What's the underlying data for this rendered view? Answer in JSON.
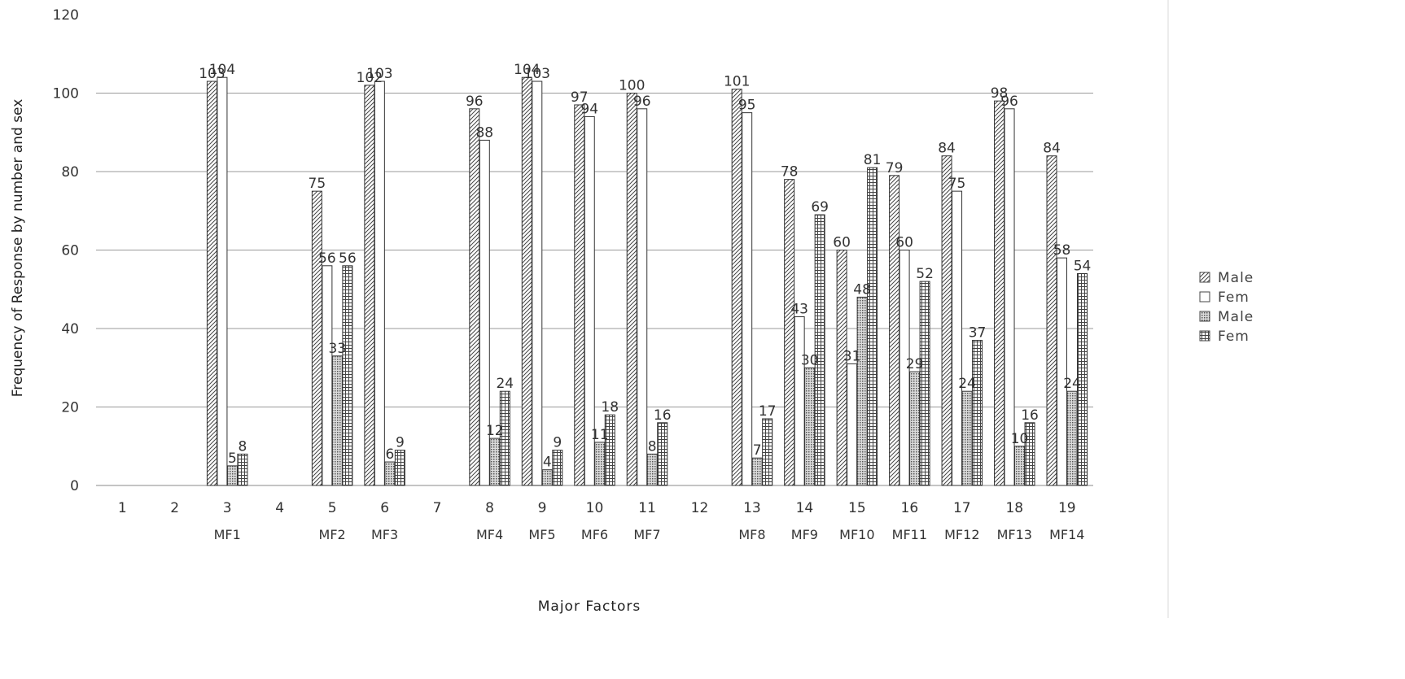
{
  "chart_data": {
    "type": "bar",
    "xlabel": "Major Factors",
    "ylabel": "Frequency of Response by number and sex",
    "ylim": [
      0,
      120
    ],
    "yticks": [
      0,
      20,
      40,
      60,
      80,
      100,
      120
    ],
    "grid": true,
    "legend_position": "right",
    "categories": [
      "1",
      "2",
      "3",
      "4",
      "5",
      "6",
      "7",
      "8",
      "9",
      "10",
      "11",
      "12",
      "13",
      "14",
      "15",
      "16",
      "17",
      "18",
      "19"
    ],
    "category_sublabels": [
      "",
      "",
      "MF1",
      "",
      "MF2",
      "MF3",
      "",
      "MF4",
      "MF5",
      "MF6",
      "MF7",
      "",
      "MF8",
      "MF9",
      "MF10",
      "MF11",
      "MF12",
      "MF13",
      "MF14"
    ],
    "series": [
      {
        "name": "Male",
        "pattern": "diag",
        "values": [
          null,
          null,
          103,
          null,
          75,
          102,
          null,
          96,
          104,
          97,
          100,
          null,
          101,
          78,
          60,
          79,
          84,
          98,
          84
        ]
      },
      {
        "name": "Fem",
        "pattern": "blank",
        "values": [
          null,
          null,
          104,
          null,
          56,
          103,
          null,
          88,
          103,
          94,
          96,
          null,
          95,
          43,
          31,
          60,
          75,
          96,
          58
        ]
      },
      {
        "name": "Male",
        "pattern": "dots",
        "values": [
          null,
          null,
          5,
          null,
          33,
          6,
          null,
          12,
          4,
          11,
          8,
          null,
          7,
          30,
          48,
          29,
          24,
          10,
          24
        ]
      },
      {
        "name": "Fem",
        "pattern": "grid",
        "values": [
          null,
          null,
          8,
          null,
          56,
          9,
          null,
          24,
          9,
          18,
          16,
          null,
          17,
          69,
          81,
          52,
          37,
          16,
          54
        ]
      }
    ]
  }
}
